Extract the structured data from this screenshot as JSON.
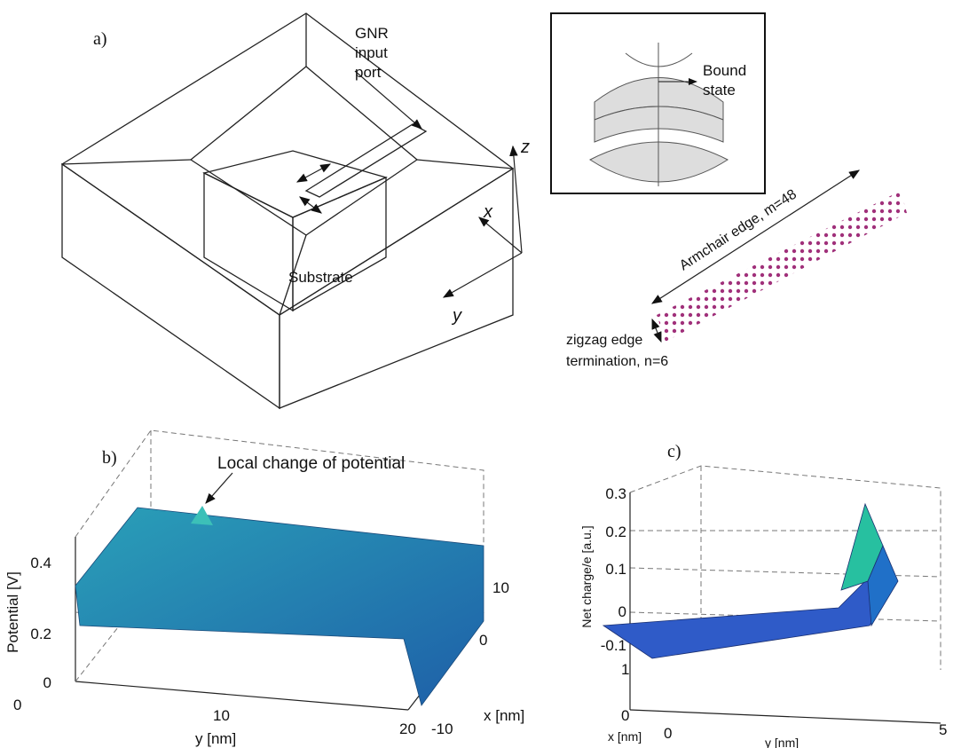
{
  "panel_a": {
    "label": "a)",
    "gnr_label": [
      "GNR",
      "input",
      "port"
    ],
    "substrate": "Substrate",
    "axes": [
      "z",
      "x",
      "y"
    ],
    "inset": {
      "label": [
        "Bound",
        "state"
      ]
    },
    "ribbon": {
      "armchair": "Armchair edge, m=48",
      "zigzag": [
        "zigzag edge",
        "termination, n=6"
      ]
    }
  },
  "panel_b": {
    "label": "b)",
    "annotation": "Local change of potential",
    "zlabel": "Potential [V]",
    "ylabel": "y [nm]",
    "xlabel": "x [nm]",
    "zticks": [
      0.4,
      0.2,
      0
    ],
    "yticks": [
      0,
      10,
      20
    ],
    "xticks": [
      10,
      0,
      -10
    ]
  },
  "panel_c": {
    "label": "c)",
    "zlabel": "Net charge/e [a.u.]",
    "xlabel": "x [nm]",
    "ylabel": "y [nm]",
    "zticks": [
      0.3,
      0.2,
      0.1,
      0,
      -0.1
    ],
    "xticks": [
      1,
      0
    ],
    "yticks": [
      0,
      5
    ]
  }
}
